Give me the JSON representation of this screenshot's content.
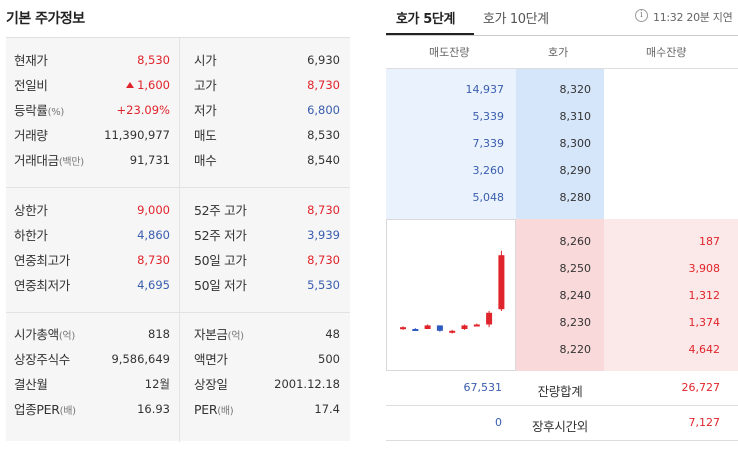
{
  "basic_info": {
    "title": "기본 주가정보",
    "sections": [
      {
        "rows": [
          {
            "lk": "현재가",
            "lu": "",
            "lv": "8,530",
            "lc": "red",
            "rk": "시가",
            "ru": "",
            "rv": "6,930",
            "rc": ""
          },
          {
            "lk": "전일비",
            "lu": "",
            "lv": "1,600",
            "lc": "red",
            "rk": "고가",
            "ru": "",
            "rv": "8,730",
            "rc": "red",
            "l_icon": "up-triangle-icon"
          },
          {
            "lk": "등락률",
            "lu": "(%)",
            "lv": "+23.09%",
            "lc": "red",
            "rk": "저가",
            "ru": "",
            "rv": "6,800",
            "rc": "blue"
          },
          {
            "lk": "거래량",
            "lu": "",
            "lv": "11,390,977",
            "lc": "",
            "rk": "매도",
            "ru": "",
            "rv": "8,530",
            "rc": ""
          },
          {
            "lk": "거래대금",
            "lu": "(백만)",
            "lv": "91,731",
            "lc": "",
            "rk": "매수",
            "ru": "",
            "rv": "8,540",
            "rc": ""
          }
        ]
      },
      {
        "rows": [
          {
            "lk": "상한가",
            "lu": "",
            "lv": "9,000",
            "lc": "red",
            "rk": "52주 고가",
            "ru": "",
            "rv": "8,730",
            "rc": "red"
          },
          {
            "lk": "하한가",
            "lu": "",
            "lv": "4,860",
            "lc": "blue",
            "rk": "52주 저가",
            "ru": "",
            "rv": "3,939",
            "rc": "blue"
          },
          {
            "lk": "연중최고가",
            "lu": "",
            "lv": "8,730",
            "lc": "red",
            "rk": "50일 고가",
            "ru": "",
            "rv": "8,730",
            "rc": "red"
          },
          {
            "lk": "연중최저가",
            "lu": "",
            "lv": "4,695",
            "lc": "blue",
            "rk": "50일 저가",
            "ru": "",
            "rv": "5,530",
            "rc": "blue"
          }
        ]
      },
      {
        "rows": [
          {
            "lk": "시가총액",
            "lu": "(억)",
            "lv": "818",
            "lc": "",
            "rk": "자본금",
            "ru": "(억)",
            "rv": "48",
            "rc": ""
          },
          {
            "lk": "상장주식수",
            "lu": "",
            "lv": "9,586,649",
            "lc": "",
            "rk": "액면가",
            "ru": "",
            "rv": "500",
            "rc": ""
          },
          {
            "lk": "결산월",
            "lu": "",
            "lv": "12월",
            "lc": "",
            "rk": "상장일",
            "ru": "",
            "rv": "2001.12.18",
            "rc": ""
          },
          {
            "lk": "업종PER",
            "lu": "(배)",
            "lv": "16.93",
            "lc": "",
            "rk": "PER",
            "ru": "(배)",
            "rv": "17.4",
            "rc": ""
          }
        ]
      }
    ]
  },
  "orderbook": {
    "tabs": [
      {
        "label": "호가 5단계",
        "active": true
      },
      {
        "label": "호가 10단계",
        "active": false
      }
    ],
    "info_icon": "info-icon",
    "delay_text": "11:32 20분 지연",
    "headers": {
      "ask": "매도잔량",
      "price": "호가",
      "bid": "매수잔량"
    },
    "asks": [
      {
        "qty": "14,937",
        "price": "8,320"
      },
      {
        "qty": "5,339",
        "price": "8,310"
      },
      {
        "qty": "7,339",
        "price": "8,300"
      },
      {
        "qty": "3,260",
        "price": "8,290"
      },
      {
        "qty": "5,048",
        "price": "8,280"
      }
    ],
    "bids": [
      {
        "price": "8,260",
        "qty": "187"
      },
      {
        "price": "8,250",
        "qty": "3,908"
      },
      {
        "price": "8,240",
        "qty": "1,312"
      },
      {
        "price": "8,230",
        "qty": "1,374"
      },
      {
        "price": "8,220",
        "qty": "4,642"
      }
    ],
    "totals": {
      "ask": "67,531",
      "label": "잔량합계",
      "bid": "26,727"
    },
    "after_hours": {
      "ask": "0",
      "label": "장후시간외",
      "bid": "7,127"
    },
    "mini_chart": {
      "type": "candlestick",
      "colors": {
        "up": "#e0242b",
        "down": "#2f5bbf"
      },
      "candles": [
        {
          "o": 0.1,
          "c": 0.12,
          "h": 0.13,
          "l": 0.09
        },
        {
          "o": 0.1,
          "c": 0.09,
          "h": 0.11,
          "l": 0.08
        },
        {
          "o": 0.1,
          "c": 0.14,
          "h": 0.15,
          "l": 0.1
        },
        {
          "o": 0.14,
          "c": 0.08,
          "h": 0.14,
          "l": 0.07
        },
        {
          "o": 0.06,
          "c": 0.08,
          "h": 0.09,
          "l": 0.05
        },
        {
          "o": 0.1,
          "c": 0.14,
          "h": 0.15,
          "l": 0.09
        },
        {
          "o": 0.14,
          "c": 0.15,
          "h": 0.16,
          "l": 0.13
        },
        {
          "o": 0.15,
          "c": 0.28,
          "h": 0.3,
          "l": 0.12
        },
        {
          "o": 0.32,
          "c": 0.92,
          "h": 0.97,
          "l": 0.3
        }
      ]
    }
  }
}
